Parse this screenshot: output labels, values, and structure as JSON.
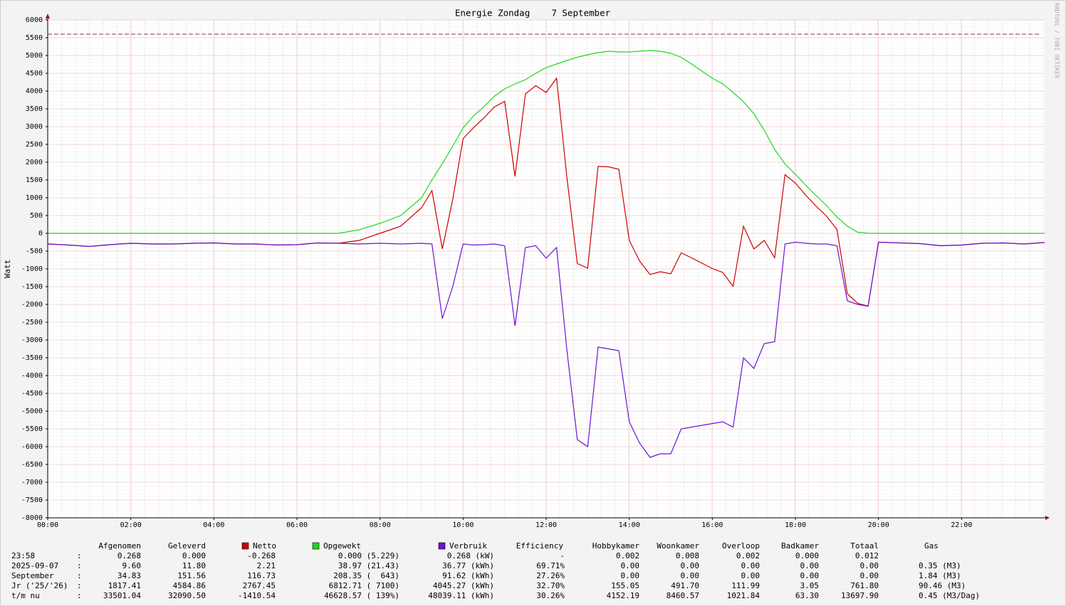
{
  "chart_data": {
    "type": "line",
    "title": "Energie Zondag    7 September",
    "y_label": "Watt",
    "watermark": "RRDTOOL / TOBI OETIKER",
    "xlim": [
      0,
      24
    ],
    "ylim": [
      -8000,
      6000
    ],
    "xticks": [
      {
        "value": 0,
        "label": "00:00"
      },
      {
        "value": 2,
        "label": "02:00"
      },
      {
        "value": 4,
        "label": "04:00"
      },
      {
        "value": 6,
        "label": "06:00"
      },
      {
        "value": 8,
        "label": "08:00"
      },
      {
        "value": 10,
        "label": "10:00"
      },
      {
        "value": 12,
        "label": "12:00"
      },
      {
        "value": 14,
        "label": "14:00"
      },
      {
        "value": 16,
        "label": "16:00"
      },
      {
        "value": 18,
        "label": "18:00"
      },
      {
        "value": 20,
        "label": "20:00"
      },
      {
        "value": 22,
        "label": "22:00"
      }
    ],
    "yticks": [
      -8000,
      -7500,
      -7000,
      -6500,
      -6000,
      -5500,
      -5000,
      -4500,
      -4000,
      -3500,
      -3000,
      -2500,
      -2000,
      -1500,
      -1000,
      -500,
      0,
      500,
      1000,
      1500,
      2000,
      2500,
      3000,
      3500,
      4000,
      4500,
      5000,
      5500,
      6000
    ],
    "grid": true,
    "max_line": {
      "value": 5600,
      "color": "#8b3a4a"
    },
    "x": [
      0,
      0.5,
      1,
      1.5,
      2,
      2.5,
      3,
      3.5,
      4,
      4.5,
      5,
      5.5,
      6,
      6.5,
      7,
      7.5,
      8,
      8.5,
      9,
      9.25,
      9.5,
      9.75,
      10,
      10.25,
      10.5,
      10.75,
      11,
      11.25,
      11.5,
      11.75,
      12,
      12.25,
      12.5,
      12.75,
      13,
      13.25,
      13.5,
      13.75,
      14,
      14.25,
      14.5,
      14.75,
      15,
      15.25,
      15.5,
      15.75,
      16,
      16.25,
      16.5,
      16.75,
      17,
      17.25,
      17.5,
      17.75,
      18,
      18.25,
      18.5,
      18.75,
      19,
      19.25,
      19.5,
      19.75,
      20,
      20.5,
      21,
      21.5,
      22,
      22.5,
      23,
      23.5,
      24
    ],
    "series": [
      {
        "name": "Opgewekt",
        "color": "#1ed81e",
        "values": [
          0,
          0,
          0,
          0,
          0,
          0,
          0,
          0,
          0,
          0,
          0,
          0,
          0,
          0,
          0,
          100,
          280,
          500,
          1000,
          1500,
          1960,
          2450,
          2960,
          3300,
          3560,
          3850,
          4060,
          4200,
          4320,
          4500,
          4660,
          4760,
          4860,
          4950,
          5020,
          5080,
          5120,
          5100,
          5100,
          5120,
          5140,
          5120,
          5060,
          4950,
          4760,
          4560,
          4360,
          4200,
          3960,
          3700,
          3360,
          2900,
          2360,
          1950,
          1660,
          1350,
          1060,
          780,
          460,
          200,
          30,
          0,
          0,
          0,
          0,
          0,
          0,
          0,
          0,
          0,
          0
        ]
      },
      {
        "name": "Netto",
        "color": "#cc0000",
        "values": [
          -300,
          -330,
          -370,
          -320,
          -280,
          -300,
          -300,
          -280,
          -270,
          -300,
          -300,
          -330,
          -320,
          -270,
          -280,
          -200,
          0,
          200,
          720,
          1200,
          -440,
          950,
          2660,
          2970,
          3240,
          3550,
          3710,
          1600,
          3920,
          4150,
          3960,
          4360,
          1560,
          -850,
          -980,
          1880,
          1870,
          1800,
          -200,
          -780,
          -1160,
          -1080,
          -1140,
          -550,
          -690,
          -840,
          -990,
          -1100,
          -1490,
          200,
          -440,
          -200,
          -690,
          1650,
          1410,
          1070,
          760,
          480,
          110,
          -1700,
          -1970,
          -2050,
          -250,
          -270,
          -290,
          -350,
          -330,
          -280,
          -270,
          -300,
          -260
        ]
      },
      {
        "name": "Verbruik",
        "color": "#6a14d4",
        "values": [
          -300,
          -330,
          -370,
          -320,
          -280,
          -300,
          -300,
          -280,
          -270,
          -300,
          -300,
          -330,
          -320,
          -270,
          -280,
          -300,
          -280,
          -300,
          -280,
          -300,
          -2400,
          -1500,
          -300,
          -330,
          -320,
          -300,
          -350,
          -2600,
          -400,
          -350,
          -700,
          -400,
          -3300,
          -5800,
          -6000,
          -3200,
          -3250,
          -3300,
          -5300,
          -5900,
          -6300,
          -6200,
          -6200,
          -5500,
          -5450,
          -5400,
          -5350,
          -5300,
          -5450,
          -3500,
          -3800,
          -3100,
          -3050,
          -300,
          -250,
          -280,
          -300,
          -300,
          -350,
          -1900,
          -2000,
          -2050,
          -250,
          -270,
          -290,
          -350,
          -330,
          -280,
          -270,
          -300,
          -260
        ]
      }
    ],
    "legend_table": {
      "separator": ":",
      "headers_left": [
        "Afgenomen",
        "Geleverd"
      ],
      "headers_right": [
        "Efficiency",
        "Hobbykamer",
        "Woonkamer",
        "Overloop",
        "Badkamer",
        "Totaal",
        "Gas"
      ],
      "rows": [
        {
          "label": "23:58",
          "cells": [
            "0.268",
            "0.000",
            "-0.268",
            "0.000 (5.229)",
            "0.268 (kW)",
            "-",
            "0.002",
            "0.008",
            "0.002",
            "0.000",
            "0.012"
          ]
        },
        {
          "label": "2025-09-07",
          "cells": [
            "9.60",
            "11.80",
            "2.21",
            "38.97 (21.43)",
            "36.77 (kWh)",
            "69.71%",
            "0.00",
            "0.00",
            "0.00",
            "0.00",
            "0.00",
            "0.35 (M3)"
          ]
        },
        {
          "label": "September",
          "cells": [
            "34.83",
            "151.56",
            "116.73",
            "208.35 (  643)",
            "91.62 (kWh)",
            "27.26%",
            "0.00",
            "0.00",
            "0.00",
            "0.00",
            "0.00",
            "1.84 (M3)"
          ]
        },
        {
          "label": "Jr ('25/'26)",
          "cells": [
            "1817.41",
            "4584.86",
            "2767.45",
            "6812.71 ( 7100)",
            "4045.27 (kWh)",
            "32.70%",
            "155.05",
            "491.70",
            "111.99",
            "3.05",
            "761.80",
            "90.46 (M3)"
          ]
        },
        {
          "label": "t/m nu",
          "cells": [
            "33501.04",
            "32090.50",
            "-1410.54",
            "46628.57 ( 139%)",
            "48039.11 (kWh)",
            "30.26%",
            "4152.19",
            "8460.57",
            "1021.84",
            "63.30",
            "13697.90",
            "0.45 (M3/Dag)"
          ]
        }
      ]
    }
  }
}
